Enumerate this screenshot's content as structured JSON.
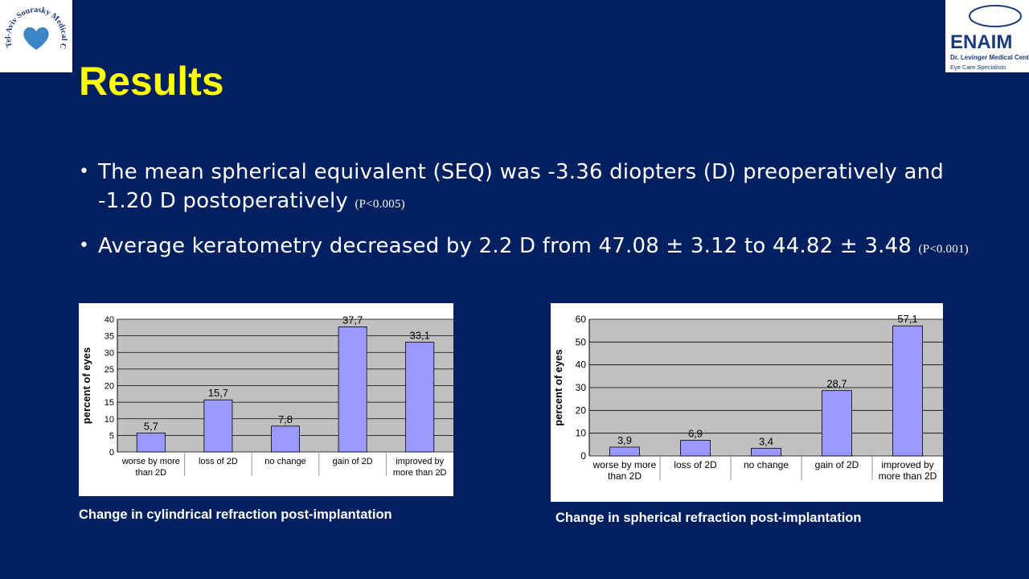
{
  "logos": {
    "left_text": "Tel-Aviv Sourasky Medical Center",
    "right_name": "ENAIM",
    "right_sub1": "Dr. Levinger Medical Center",
    "right_sub2": "Eye Care Specialists"
  },
  "slide": {
    "title": "Results",
    "bullets": [
      {
        "text": "The mean spherical equivalent (SEQ) was -3.36 diopters (D) preoperatively and -1.20 D postoperatively",
        "note": "(P<0.005)"
      },
      {
        "text": "Average keratometry decreased by 2.2 D from 47.08 ± 3.12 to 44.82 ± 3.48",
        "note": "(P<0.001)"
      }
    ]
  },
  "colors": {
    "background": "#002060",
    "title": "#ffff00",
    "bar": "#9999ff",
    "plot_bg": "#c0c0c0"
  },
  "chart_data": [
    {
      "type": "bar",
      "caption": "Change in cylindrical refraction post-implantation",
      "ylabel": "percent of eyes",
      "categories": [
        [
          "worse by more",
          "than 2D"
        ],
        [
          "loss of 2D"
        ],
        [
          "no change"
        ],
        [
          "gain of 2D"
        ],
        [
          "improved by",
          "more than 2D"
        ]
      ],
      "values": [
        5.7,
        15.7,
        7.8,
        37.7,
        33.1
      ],
      "value_labels": [
        "5,7",
        "15,7",
        "7,8",
        "37,7",
        "33,1"
      ],
      "ylim": [
        0,
        40
      ],
      "yticks": [
        0,
        5,
        10,
        15,
        20,
        25,
        30,
        35,
        40
      ],
      "grid": true
    },
    {
      "type": "bar",
      "caption": "Change in spherical refraction post-implantation",
      "ylabel": "percent of eyes",
      "categories": [
        [
          "worse by more",
          "than 2D"
        ],
        [
          "loss of 2D"
        ],
        [
          "no change"
        ],
        [
          "gain of 2D"
        ],
        [
          "improved by",
          "more than 2D"
        ]
      ],
      "values": [
        3.9,
        6.9,
        3.4,
        28.7,
        57.1
      ],
      "value_labels": [
        "3,9",
        "6,9",
        "3,4",
        "28,7",
        "57,1"
      ],
      "ylim": [
        0,
        60
      ],
      "yticks": [
        0,
        10,
        20,
        30,
        40,
        50,
        60
      ],
      "grid": true
    }
  ]
}
